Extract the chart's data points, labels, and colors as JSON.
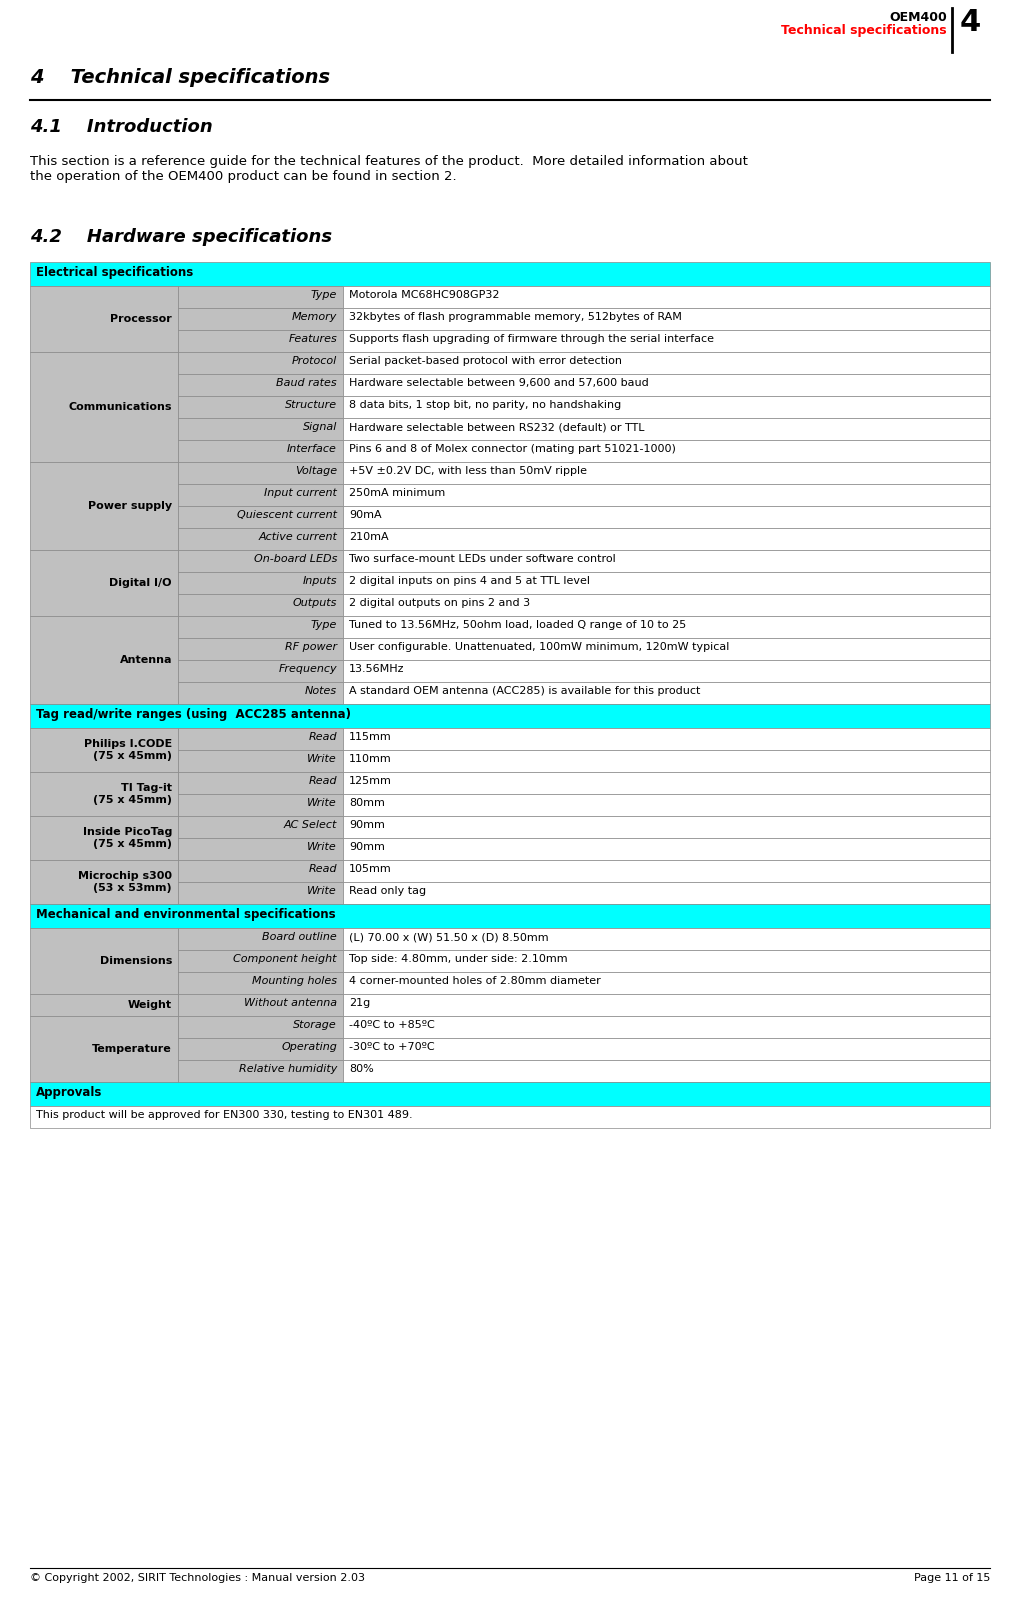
{
  "page_title": "OEM400",
  "page_subtitle": "Technical specifications",
  "page_number": "4",
  "chapter_title": "4    Technical specifications",
  "section1_title": "4.1    Introduction",
  "intro_text": "This section is a reference guide for the technical features of the product.  More detailed information about\nthe operation of the OEM400 product can be found in section 2.",
  "section2_title": "4.2    Hardware specifications",
  "cyan_color": "#00FFFF",
  "row_bg": "#C0C0C0",
  "cat_bg": "#B0B0B0",
  "border_color": "#888888",
  "footer_text": "© Copyright 2002, SIRIT Technologies : Manual version 2.03",
  "footer_right": "Page 11 of 15",
  "electrical_header": "Electrical specifications",
  "tag_header": "Tag read/write ranges (using  ACC285 antenna)",
  "mech_header": "Mechanical and environmental specifications",
  "approvals_header": "Approvals",
  "approvals_text": "This product will be approved for EN300 330, testing to EN301 489.",
  "elec_groups": [
    {
      "cat": "Processor",
      "rows": [
        [
          "Type",
          "Motorola MC68HC908GP32"
        ],
        [
          "Memory",
          "32kbytes of flash programmable memory, 512bytes of RAM"
        ],
        [
          "Features",
          "Supports flash upgrading of firmware through the serial interface"
        ]
      ]
    },
    {
      "cat": "Communications",
      "rows": [
        [
          "Protocol",
          "Serial packet-based protocol with error detection"
        ],
        [
          "Baud rates",
          "Hardware selectable between 9,600 and 57,600 baud"
        ],
        [
          "Structure",
          "8 data bits, 1 stop bit, no parity, no handshaking"
        ],
        [
          "Signal",
          "Hardware selectable between RS232 (default) or TTL"
        ],
        [
          "Interface",
          "Pins 6 and 8 of Molex connector (mating part 51021-1000)"
        ]
      ]
    },
    {
      "cat": "Power supply",
      "rows": [
        [
          "Voltage",
          "+5V ±0.2V DC, with less than 50mV ripple"
        ],
        [
          "Input current",
          "250mA minimum"
        ],
        [
          "Quiescent current",
          "90mA"
        ],
        [
          "Active current",
          "210mA"
        ]
      ]
    },
    {
      "cat": "Digital I/O",
      "rows": [
        [
          "On-board LEDs",
          "Two surface-mount LEDs under software control"
        ],
        [
          "Inputs",
          "2 digital inputs on pins 4 and 5 at TTL level"
        ],
        [
          "Outputs",
          "2 digital outputs on pins 2 and 3"
        ]
      ]
    },
    {
      "cat": "Antenna",
      "rows": [
        [
          "Type",
          "Tuned to 13.56MHz, 50ohm load, loaded Q range of 10 to 25"
        ],
        [
          "RF power",
          "User configurable. Unattenuated, 100mW minimum, 120mW typical"
        ],
        [
          "Frequency",
          "13.56MHz"
        ],
        [
          "Notes",
          "A standard OEM antenna (ACC285) is available for this product"
        ]
      ]
    }
  ],
  "tag_groups": [
    {
      "cat": "Philips I.CODE\n(75 x 45mm)",
      "rows": [
        [
          "Read",
          "115mm"
        ],
        [
          "Write",
          "110mm"
        ]
      ]
    },
    {
      "cat": "TI Tag-it\n(75 x 45mm)",
      "rows": [
        [
          "Read",
          "125mm"
        ],
        [
          "Write",
          "80mm"
        ]
      ]
    },
    {
      "cat": "Inside PicoTag\n(75 x 45mm)",
      "rows": [
        [
          "AC Select",
          "90mm"
        ],
        [
          "Write",
          "90mm"
        ]
      ]
    },
    {
      "cat": "Microchip s300\n(53 x 53mm)",
      "rows": [
        [
          "Read",
          "105mm"
        ],
        [
          "Write",
          "Read only tag"
        ]
      ]
    }
  ],
  "mech_groups": [
    {
      "cat": "Dimensions",
      "rows": [
        [
          "Board outline",
          "(L) 70.00 x (W) 51.50 x (D) 8.50mm"
        ],
        [
          "Component height",
          "Top side: 4.80mm, under side: 2.10mm"
        ],
        [
          "Mounting holes",
          "4 corner-mounted holes of 2.80mm diameter"
        ]
      ]
    },
    {
      "cat": "Weight",
      "rows": [
        [
          "Without antenna",
          "21g"
        ]
      ]
    },
    {
      "cat": "Temperature",
      "rows": [
        [
          "Storage",
          "-40ºC to +85ºC"
        ],
        [
          "Operating",
          "-30ºC to +70ºC"
        ],
        [
          "Relative humidity",
          "80%"
        ]
      ]
    }
  ]
}
